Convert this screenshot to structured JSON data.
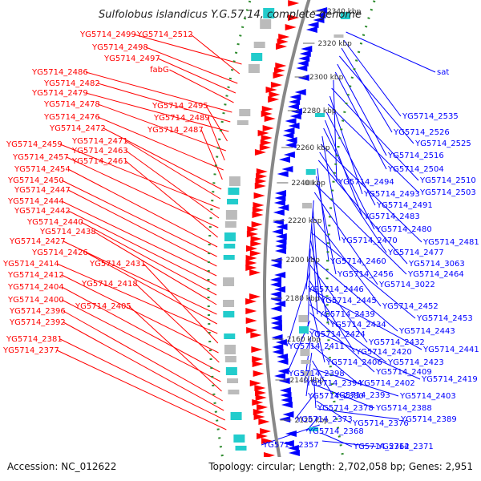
{
  "title": "Sulfolobus islandicus Y.G.57.14, complete genome",
  "footer": {
    "accession": "Accession: NC_012622",
    "topology": "Topology: circular; Length: 2,702,058 bp; Genes: 2,951"
  },
  "colors": {
    "forward": "#ff0000",
    "reverse": "#0000ff",
    "backbone": "#888888",
    "ticks": "#2e8b2e",
    "feature_cyan": "#22cccc",
    "feature_gray": "#bbbbbb"
  },
  "ticks": [
    "2340 kbp",
    "2320 kbp",
    "2300 kbp",
    "2280 kbp",
    "2260 kbp",
    "2240 kbp",
    "2220 kbp",
    "2200 kbp",
    "2180 kbp",
    "2160 kbp",
    "2140 kbp",
    "2120 kbp"
  ],
  "labels_left": [
    "YG5714_2499",
    "YG5714_2512",
    "YG5714_2498",
    "YG5714_2497",
    "fabG",
    "YG5714_2486",
    "YG5714_2482",
    "YG5714_2479",
    "YG5714_2495",
    "YG5714_2478",
    "YG5714_2489",
    "YG5714_2476",
    "YG5714_2487",
    "YG5714_2472",
    "YG5714_2471",
    "YG5714_2459",
    "YG5714_2463",
    "YG5714_2457",
    "YG5714_2461",
    "YG5714_2454",
    "YG5714_2450",
    "YG5714_2447",
    "YG5714_2444",
    "YG5714_2442",
    "YG5714_2440",
    "YG5714_2438",
    "YG5714_2427",
    "YG5714_2426",
    "YG5714_2414",
    "YG5714_2431",
    "YG5714_2412",
    "YG5714_2418",
    "YG5714_2404",
    "YG5714_2400",
    "YG5714_2405",
    "YG5714_2396",
    "YG5714_2392",
    "YG5714_2381",
    "YG5714_2377"
  ],
  "labels_right": [
    "sat",
    "YG5714_2535",
    "YG5714_2526",
    "YG5714_2525",
    "YG5714_2516",
    "YG5714_2504",
    "YG5714_2494",
    "YG5714_2510",
    "YG5714_2493",
    "YG5714_2503",
    "YG5714_2491",
    "YG5714_2483",
    "YG5714_2480",
    "YG5714_2470",
    "YG5714_2481",
    "YG5714_2477",
    "YG5714_3063",
    "YG5714_2460",
    "YG5714_2456",
    "YG5714_2464",
    "YG5714_3022",
    "YG5714_2446",
    "YG5714_2445",
    "YG5714_2452",
    "YG5714_2439",
    "YG5714_2453",
    "YG5714_2434",
    "YG5714_2424",
    "YG5714_2443",
    "YG5714_2432",
    "YG5714_2411",
    "YG5714_2420",
    "YG5714_2441",
    "YG5714_2406",
    "YG5714_2423",
    "YG5714_2409",
    "YG5714_2398",
    "YG5714_2419",
    "YG5714_2394",
    "YG5714_2402",
    "YG5714_2380",
    "YG5714_2393",
    "YG5714_2403",
    "YG5714_2378",
    "YG5714_2388",
    "YG5714_2373",
    "YG5714_2376",
    "YG5714_2389",
    "YG5714_2368",
    "YG5714_2357",
    "YG5714_2362",
    "YG5714_2371"
  ]
}
